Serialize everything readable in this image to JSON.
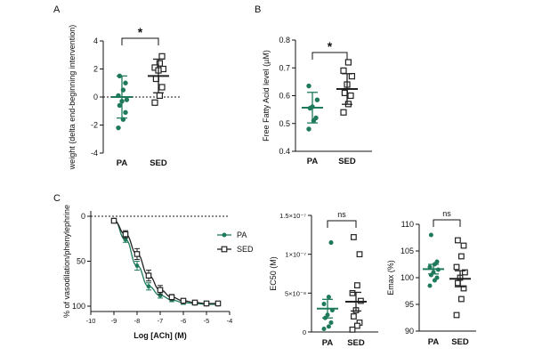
{
  "figure": {
    "panel_labels": [
      "A",
      "B",
      "C"
    ],
    "colors": {
      "pa": "#1e7a5a",
      "sed": "#222222",
      "axis": "#111111"
    }
  },
  "chart_data": [
    {
      "id": "A",
      "type": "scatter",
      "title": "",
      "xlabel": "",
      "ylabel": "weight (delta end-beginning intervention)",
      "categories": [
        "PA",
        "SED"
      ],
      "ylim": [
        -4,
        4
      ],
      "yticks": [
        "-4",
        "-2",
        "0",
        "2",
        "4"
      ],
      "reference_line": 0,
      "series": [
        {
          "name": "PA",
          "marker": "filled-circle",
          "values": [
            1.5,
            1.0,
            0.5,
            0.1,
            -0.2,
            -0.3,
            -0.6,
            -1.1,
            -1.6,
            -2.2
          ],
          "mean": 0.0,
          "err": 1.5
        },
        {
          "name": "SED",
          "marker": "open-square",
          "values": [
            2.9,
            2.4,
            2.1,
            2.0,
            1.9,
            1.3,
            0.7,
            0.1,
            -0.4
          ],
          "mean": 1.5,
          "err": 1.2
        }
      ],
      "significance": "*"
    },
    {
      "id": "B",
      "type": "scatter",
      "title": "",
      "xlabel": "",
      "ylabel": "Free Fatty Acid level (µM)",
      "categories": [
        "PA",
        "SED"
      ],
      "ylim": [
        0.4,
        0.8
      ],
      "yticks": [
        "0.4",
        "0.5",
        "0.6",
        "0.7",
        "0.8"
      ],
      "series": [
        {
          "name": "PA",
          "marker": "filled-circle",
          "values": [
            0.635,
            0.585,
            0.56,
            0.555,
            0.52,
            0.51,
            0.48
          ],
          "mean": 0.557,
          "err": 0.055
        },
        {
          "name": "SED",
          "marker": "open-square",
          "values": [
            0.72,
            0.69,
            0.67,
            0.64,
            0.61,
            0.6,
            0.57,
            0.54
          ],
          "mean": 0.624,
          "err": 0.055
        }
      ],
      "significance": "*"
    },
    {
      "id": "C1",
      "type": "line",
      "title": "",
      "xlabel": "Log [ACh] (M)",
      "ylabel": "% of vasodilation/phenylephrine",
      "xlim": [
        -10,
        -4
      ],
      "xticks": [
        "-10",
        "-9",
        "-8",
        "-7",
        "-6",
        "-5",
        "-4"
      ],
      "ylim": [
        0,
        100
      ],
      "yticks": [
        "0",
        "50",
        "100"
      ],
      "reference_line": 0,
      "x": [
        -9,
        -8.5,
        -8,
        -7.5,
        -7,
        -6.5,
        -6,
        -5.5,
        -5,
        -4.5
      ],
      "series": [
        {
          "name": "PA",
          "marker": "filled-circle",
          "values": [
            4,
            26,
            55,
            78,
            88,
            93,
            96,
            97,
            98,
            98
          ],
          "err": [
            1,
            3,
            5,
            4,
            3,
            2,
            2,
            1,
            1,
            1
          ]
        },
        {
          "name": "SED",
          "marker": "open-square",
          "values": [
            5,
            20,
            42,
            66,
            82,
            90,
            94,
            96,
            97,
            97
          ],
          "err": [
            2,
            4,
            6,
            6,
            5,
            3,
            2,
            2,
            1,
            1
          ]
        }
      ],
      "legend": [
        "PA",
        "SED"
      ],
      "legend_position": "right"
    },
    {
      "id": "C2",
      "type": "scatter",
      "title": "",
      "xlabel": "",
      "ylabel": "EC50 (M)",
      "categories": [
        "PA",
        "SED"
      ],
      "ylim": [
        0,
        1.5e-07
      ],
      "yticks": [
        "0",
        "5×10⁻⁸",
        "1×10⁻⁷",
        "1.5×10⁻⁷"
      ],
      "series": [
        {
          "name": "PA",
          "marker": "filled-circle",
          "values": [
            1.15e-07,
            4.5e-08,
            3.6e-08,
            2.8e-08,
            2.2e-08,
            1.8e-08,
            1.2e-08,
            7e-09,
            4e-09
          ],
          "mean": 3e-08,
          "err": 1.2e-08
        },
        {
          "name": "SED",
          "marker": "open-square",
          "values": [
            1.22e-07,
            1e-07,
            6e-08,
            5e-08,
            4e-08,
            2.8e-08,
            2e-08,
            1.2e-08,
            8e-09,
            3e-09
          ],
          "mean": 3.9e-08,
          "err": 1.2e-08
        }
      ],
      "significance": "ns"
    },
    {
      "id": "C3",
      "type": "scatter",
      "title": "",
      "xlabel": "",
      "ylabel": "Emax (%)",
      "categories": [
        "PA",
        "SED"
      ],
      "ylim": [
        90,
        110
      ],
      "yticks": [
        "90",
        "95",
        "100",
        "105",
        "110"
      ],
      "series": [
        {
          "name": "PA",
          "marker": "filled-circle",
          "values": [
            108,
            103,
            102.5,
            102,
            101.5,
            101,
            100.5,
            100,
            99.5,
            98.5
          ],
          "mean": 101.6,
          "err": 0.9
        },
        {
          "name": "SED",
          "marker": "open-square",
          "values": [
            107,
            106,
            104,
            102,
            101,
            100,
            99,
            98,
            96,
            93
          ],
          "mean": 99.8,
          "err": 1.5
        }
      ],
      "significance": "ns"
    }
  ]
}
